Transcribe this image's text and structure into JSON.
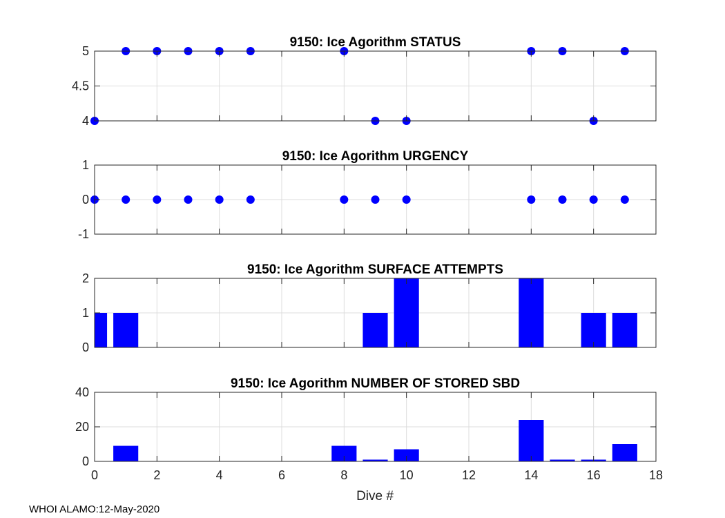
{
  "footer": "WHOI ALAMO:12-May-2020",
  "colors": {
    "marker": "#0000FF",
    "axis": "#262626",
    "grid": "#DCDCDC"
  },
  "chart_data": [
    {
      "type": "scatter",
      "title": "9150: Ice Agorithm STATUS",
      "xlabel": "",
      "ylabel": "",
      "xlim": [
        0,
        18
      ],
      "ylim": [
        4,
        5
      ],
      "yticks": [
        4,
        4.5,
        5
      ],
      "ytick_labels": [
        "4",
        "4.5",
        "5"
      ],
      "x": [
        0,
        1,
        2,
        3,
        4,
        5,
        8,
        9,
        10,
        14,
        15,
        16,
        17
      ],
      "y": [
        4,
        5,
        5,
        5,
        5,
        5,
        5,
        4,
        4,
        5,
        5,
        4,
        5
      ],
      "grid": true
    },
    {
      "type": "scatter",
      "title": "9150: Ice Agorithm URGENCY",
      "xlabel": "",
      "ylabel": "",
      "xlim": [
        0,
        18
      ],
      "ylim": [
        -1,
        1
      ],
      "yticks": [
        -1,
        0,
        1
      ],
      "ytick_labels": [
        "-1",
        "0",
        "1"
      ],
      "x": [
        0,
        1,
        2,
        3,
        4,
        5,
        8,
        9,
        10,
        14,
        15,
        16,
        17
      ],
      "y": [
        0,
        0,
        0,
        0,
        0,
        0,
        0,
        0,
        0,
        0,
        0,
        0,
        0
      ],
      "grid": true
    },
    {
      "type": "bar",
      "title": "9150: Ice Agorithm SURFACE ATTEMPTS",
      "xlabel": "",
      "ylabel": "",
      "xlim": [
        0,
        18
      ],
      "ylim": [
        0,
        2
      ],
      "yticks": [
        0,
        1,
        2
      ],
      "ytick_labels": [
        "0",
        "1",
        "2"
      ],
      "x": [
        0,
        1,
        9,
        10,
        14,
        16,
        17
      ],
      "values": [
        1,
        1,
        1,
        2,
        2,
        1,
        1
      ],
      "grid": true
    },
    {
      "type": "bar",
      "title": "9150: Ice Agorithm NUMBER OF STORED SBD",
      "xlabel": "Dive #",
      "ylabel": "",
      "xlim": [
        0,
        18
      ],
      "ylim": [
        0,
        40
      ],
      "yticks": [
        0,
        20,
        40
      ],
      "ytick_labels": [
        "0",
        "20",
        "40"
      ],
      "xticks": [
        0,
        2,
        4,
        6,
        8,
        10,
        12,
        14,
        16,
        18
      ],
      "xtick_labels": [
        "0",
        "2",
        "4",
        "6",
        "8",
        "10",
        "12",
        "14",
        "16",
        "18"
      ],
      "x": [
        1,
        8,
        9,
        10,
        14,
        15,
        16,
        17
      ],
      "values": [
        9,
        9,
        1,
        7,
        24,
        1,
        1,
        10
      ],
      "grid": true
    }
  ]
}
